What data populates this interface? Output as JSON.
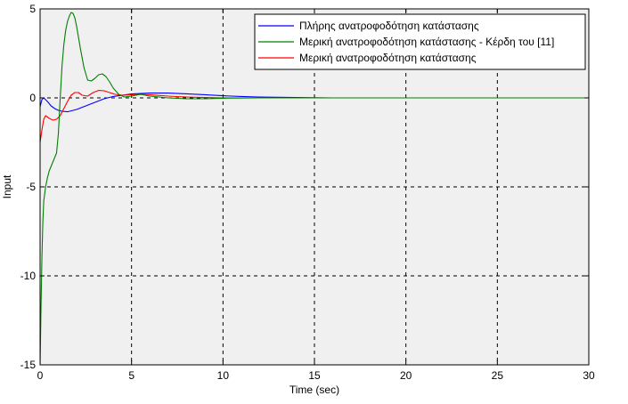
{
  "chart_data": {
    "type": "line",
    "title": "",
    "xlabel": "Time (sec)",
    "ylabel": "Input",
    "xlim": [
      0,
      30
    ],
    "ylim": [
      -15,
      5
    ],
    "xticks": [
      0,
      5,
      10,
      15,
      20,
      25,
      30
    ],
    "yticks": [
      -15,
      -10,
      -5,
      0,
      5
    ],
    "grid": true,
    "legend_position": "top-right",
    "plot_background": "#f0f0f0",
    "series": [
      {
        "name": "Πλήρης ανατροφοδότηση κατάστασης",
        "color": "#0000ff",
        "x": [
          0,
          0.1,
          0.2,
          0.4,
          0.6,
          0.8,
          1.0,
          1.2,
          1.5,
          2.0,
          2.5,
          3.0,
          3.5,
          4.0,
          5.0,
          6.0,
          7.0,
          8.0,
          9.0,
          10.0,
          11.0,
          12.0,
          14.0,
          16.0,
          20.0,
          25.0,
          30.0
        ],
        "y": [
          -0.5,
          -0.1,
          0.0,
          -0.2,
          -0.45,
          -0.6,
          -0.7,
          -0.75,
          -0.78,
          -0.65,
          -0.45,
          -0.25,
          -0.05,
          0.08,
          0.22,
          0.27,
          0.27,
          0.23,
          0.18,
          0.12,
          0.08,
          0.05,
          0.02,
          0.0,
          0.0,
          0.0,
          0.0
        ]
      },
      {
        "name": "Μερική ανατροφοδότηση κατάστασης - Κέρδη του [11]",
        "color": "#008000",
        "x": [
          0,
          0.05,
          0.1,
          0.15,
          0.2,
          0.3,
          0.4,
          0.5,
          0.7,
          0.9,
          1.0,
          1.1,
          1.2,
          1.3,
          1.4,
          1.5,
          1.6,
          1.7,
          1.8,
          1.9,
          2.0,
          2.2,
          2.4,
          2.6,
          2.8,
          3.0,
          3.2,
          3.4,
          3.6,
          3.8,
          4.0,
          4.3,
          4.6,
          5.0,
          5.5,
          6.0,
          7.0,
          8.0,
          9.0,
          10.0,
          12.0,
          15.0,
          20.0,
          30.0
        ],
        "y": [
          -15.0,
          -11.8,
          -9.0,
          -7.0,
          -5.8,
          -5.0,
          -4.5,
          -4.1,
          -3.6,
          -3.1,
          -2.0,
          0.0,
          1.8,
          3.0,
          3.8,
          4.3,
          4.6,
          4.8,
          4.75,
          4.5,
          4.0,
          2.8,
          1.7,
          1.0,
          0.95,
          1.1,
          1.3,
          1.35,
          1.2,
          0.9,
          0.55,
          0.2,
          0.05,
          0.1,
          0.2,
          0.1,
          0.0,
          -0.05,
          -0.05,
          -0.02,
          0.0,
          0.0,
          0.0,
          0.0
        ]
      },
      {
        "name": "Μερική ανατροφοδότηση κατάστασης",
        "color": "#ff0000",
        "x": [
          0,
          0.1,
          0.2,
          0.3,
          0.5,
          0.7,
          0.9,
          1.1,
          1.3,
          1.5,
          1.7,
          1.9,
          2.1,
          2.3,
          2.6,
          2.9,
          3.2,
          3.5,
          3.8,
          4.1,
          4.5,
          5.0,
          5.5,
          6.0,
          7.0,
          8.0,
          9.0,
          10.0,
          12.0,
          15.0,
          20.0,
          30.0
        ],
        "y": [
          -2.5,
          -1.8,
          -1.2,
          -1.0,
          -1.15,
          -1.25,
          -1.2,
          -1.0,
          -0.6,
          -0.2,
          0.15,
          0.3,
          0.3,
          0.15,
          0.1,
          0.3,
          0.42,
          0.4,
          0.3,
          0.2,
          0.15,
          0.18,
          0.2,
          0.18,
          0.1,
          0.05,
          0.02,
          0.0,
          0.0,
          0.0,
          0.0,
          0.0
        ]
      }
    ]
  }
}
